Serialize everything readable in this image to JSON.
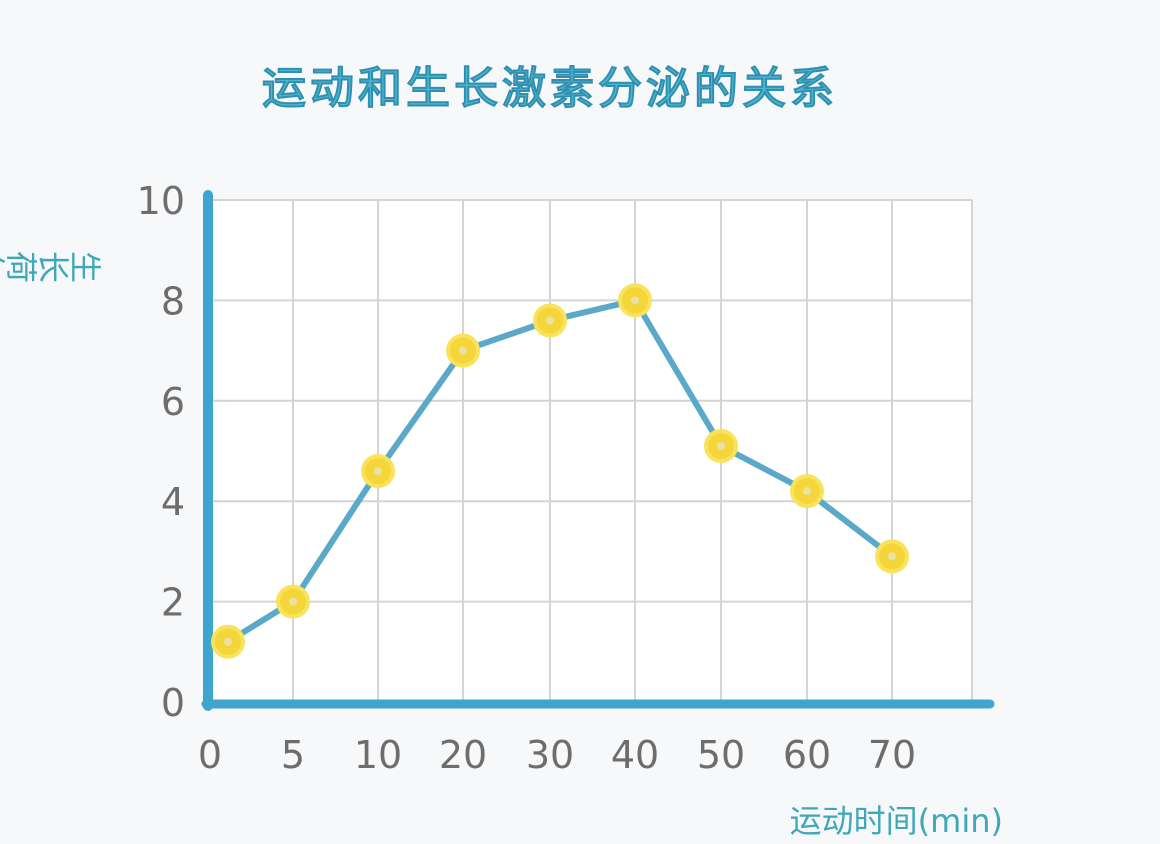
{
  "chart_data": {
    "type": "line",
    "title": "运动和生长激素分泌的关系",
    "ylabel": "生长荷尔蒙(ng\\ml)",
    "xlabel": "运动时间(min)",
    "categories": [
      "0",
      "5",
      "10",
      "20",
      "30",
      "40",
      "50",
      "60",
      "70"
    ],
    "values": [
      1.2,
      2.0,
      4.6,
      7.0,
      7.6,
      8.0,
      5.1,
      4.2,
      2.9
    ],
    "yticks": [
      "0",
      "2",
      "4",
      "6",
      "8",
      "10"
    ],
    "ylim": [
      0,
      10
    ],
    "grid": true,
    "colors": {
      "line": "#5aa9c9",
      "axis": "#3fa5cc",
      "grid": "#d4d4d4",
      "marker_fill": "#f4d63a",
      "marker_stroke": "#f9e35a",
      "title": "#4fb6cf",
      "axis_title": "#3fa8b8"
    }
  }
}
